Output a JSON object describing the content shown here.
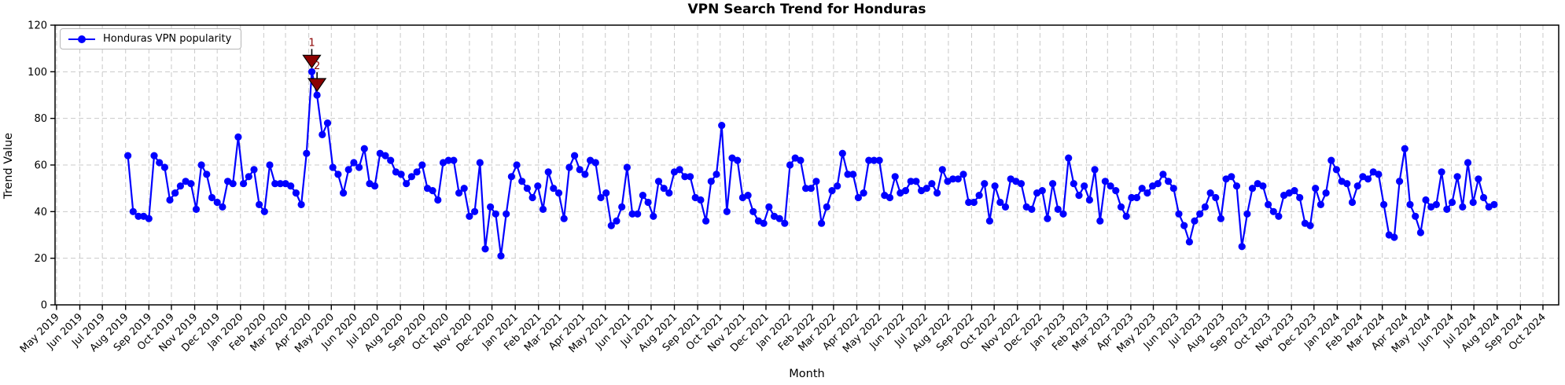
{
  "figure": {
    "title": "VPN Search Trend for Honduras",
    "x_axis_label": "Month",
    "y_axis_label": "Trend Value",
    "legend_label": "Honduras VPN popularity"
  },
  "chart_data": {
    "type": "line",
    "title": "VPN Search Trend for Honduras",
    "xlabel": "Month",
    "ylabel": "Trend Value",
    "ylim": [
      0,
      120
    ],
    "yticks": [
      0,
      20,
      40,
      60,
      80,
      100,
      120
    ],
    "grid": true,
    "grid_style": "dashed",
    "legend_position": "upper left",
    "x_tick_labels": [
      "May 2019",
      "Jun 2019",
      "Jul 2019",
      "Aug 2019",
      "Sep 2019",
      "Oct 2019",
      "Nov 2019",
      "Dec 2019",
      "Jan 2020",
      "Feb 2020",
      "Mar 2020",
      "Apr 2020",
      "May 2020",
      "Jun 2020",
      "Jul 2020",
      "Aug 2020",
      "Sep 2020",
      "Oct 2020",
      "Nov 2020",
      "Dec 2020",
      "Jan 2021",
      "Feb 2021",
      "Mar 2021",
      "Apr 2021",
      "May 2021",
      "Jun 2021",
      "Jul 2021",
      "Aug 2021",
      "Sep 2021",
      "Oct 2021",
      "Nov 2021",
      "Dec 2021",
      "Jan 2022",
      "Feb 2022",
      "Mar 2022",
      "Apr 2022",
      "May 2022",
      "Jun 2022",
      "Jul 2022",
      "Aug 2022",
      "Sep 2022",
      "Oct 2022",
      "Nov 2022",
      "Dec 2022",
      "Jan 2023",
      "Feb 2023",
      "Mar 2023",
      "Apr 2023",
      "May 2023",
      "Jun 2023",
      "Jul 2023",
      "Aug 2023",
      "Sep 2023",
      "Oct 2023",
      "Nov 2023",
      "Dec 2023",
      "Jan 2024",
      "Feb 2024",
      "Mar 2024",
      "Apr 2024",
      "May 2024",
      "Jun 2024",
      "Jul 2024",
      "Aug 2024",
      "Sep 2024",
      "Oct 2024"
    ],
    "series": [
      {
        "name": "Honduras VPN popularity",
        "color": "#0000ff",
        "marker": "circle",
        "x_start_date": "2019-08-04",
        "x_interval_days": 7,
        "values": [
          64,
          40,
          38,
          38,
          37,
          64,
          61,
          59,
          45,
          48,
          51,
          53,
          52,
          41,
          60,
          56,
          46,
          44,
          42,
          53,
          52,
          72,
          52,
          55,
          58,
          43,
          40,
          60,
          52,
          52,
          52,
          51,
          48,
          43,
          65,
          100,
          90,
          73,
          78,
          59,
          56,
          48,
          58,
          61,
          59,
          67,
          52,
          51,
          65,
          64,
          62,
          57,
          56,
          52,
          55,
          57,
          60,
          50,
          49,
          45,
          61,
          62,
          62,
          48,
          50,
          38,
          40,
          61,
          24,
          42,
          39,
          21,
          39,
          55,
          60,
          53,
          50,
          46,
          51,
          41,
          57,
          50,
          48,
          37,
          59,
          64,
          58,
          56,
          62,
          61,
          46,
          48,
          34,
          36,
          42,
          59,
          39,
          39,
          47,
          44,
          38,
          53,
          50,
          48,
          57,
          58,
          55,
          55,
          46,
          45,
          36,
          53,
          56,
          77,
          40,
          63,
          62,
          46,
          47,
          40,
          36,
          35,
          42,
          38,
          37,
          35,
          60,
          63,
          62,
          50,
          50,
          53,
          35,
          42,
          49,
          51,
          65,
          56,
          56,
          46,
          48,
          62,
          62,
          62,
          47,
          46,
          55,
          48,
          49,
          53,
          53,
          49,
          50,
          52,
          48,
          58,
          53,
          54,
          54,
          56,
          44,
          44,
          47,
          52,
          36,
          51,
          44,
          42,
          54,
          53,
          52,
          42,
          41,
          48,
          49,
          37,
          52,
          41,
          39,
          63,
          52,
          47,
          51,
          45,
          58,
          36,
          53,
          51,
          49,
          42,
          38,
          46,
          46,
          50,
          48,
          51,
          52,
          56,
          53,
          50,
          39,
          34,
          27,
          36,
          39,
          42,
          48,
          46,
          37,
          54,
          55,
          51,
          25,
          39,
          50,
          52,
          51,
          43,
          40,
          38,
          47,
          48,
          49,
          46,
          35,
          34,
          50,
          43,
          48,
          62,
          58,
          53,
          52,
          44,
          51,
          55,
          54,
          57,
          56,
          43,
          30,
          29,
          53,
          67,
          43,
          38,
          31,
          45,
          42,
          43,
          57,
          41,
          44,
          55,
          42,
          61,
          44,
          54,
          46,
          42,
          43
        ]
      }
    ],
    "annotations": [
      {
        "label": "1",
        "point_index": 35,
        "value": 100,
        "marker": "triangle-down",
        "color": "#8b0000"
      },
      {
        "label": "2",
        "point_index": 36,
        "value": 90,
        "marker": "triangle-down",
        "color": "#8b0000"
      }
    ],
    "colors": {
      "line": "#0000ff",
      "annotation": "#8b0000",
      "grid": "#c9c9c9",
      "spine": "#000000"
    }
  }
}
